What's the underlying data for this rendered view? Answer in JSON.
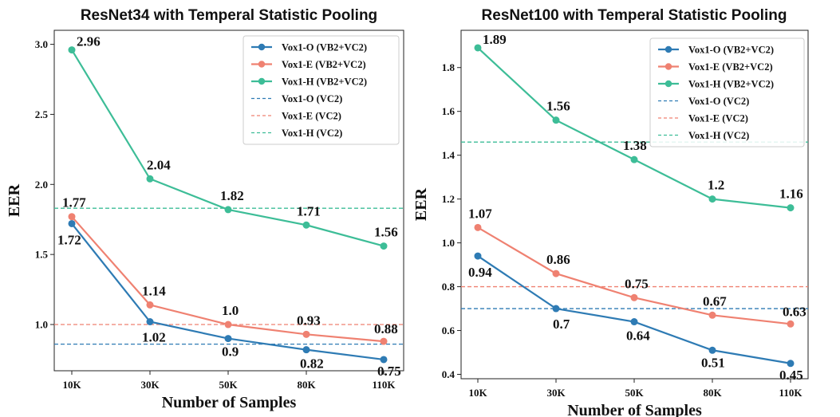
{
  "chart_data": [
    {
      "type": "line",
      "title": "ResNet34 with Temperal Statistic Pooling",
      "xlabel": "Number of Samples",
      "ylabel": "EER",
      "categories": [
        "10K",
        "30K",
        "50K",
        "80K",
        "110K"
      ],
      "ylim": [
        0.67,
        3.1
      ],
      "yticks": [
        "1.0",
        "1.5",
        "2.0",
        "2.5",
        "3.0"
      ],
      "legend_position": "top-right",
      "series": [
        {
          "name": "Vox1-O (VB2+VC2)",
          "color": "#2e7bb4",
          "values": [
            1.72,
            1.02,
            0.9,
            0.82,
            0.75
          ],
          "labels": [
            "1.72",
            "1.02",
            "0.9",
            "0.82",
            "0.75"
          ]
        },
        {
          "name": "Vox1-E (VB2+VC2)",
          "color": "#ef8171",
          "values": [
            1.77,
            1.14,
            1.0,
            0.93,
            0.88
          ],
          "labels": [
            "1.77",
            "1.14",
            "1.0",
            "0.93",
            "0.88"
          ]
        },
        {
          "name": "Vox1-H (VB2+VC2)",
          "color": "#3dbd97",
          "values": [
            2.96,
            2.04,
            1.82,
            1.71,
            1.56
          ],
          "labels": [
            "2.96",
            "2.04",
            "1.82",
            "1.71",
            "1.56"
          ]
        }
      ],
      "baselines": [
        {
          "name": "Vox1-O (VC2)",
          "color": "#2e7bb4",
          "value": 0.86
        },
        {
          "name": "Vox1-E (VC2)",
          "color": "#ef8171",
          "value": 1.0
        },
        {
          "name": "Vox1-H (VC2)",
          "color": "#3dbd97",
          "value": 1.83
        }
      ]
    },
    {
      "type": "line",
      "title": "ResNet100 with Temperal Statistic Pooling",
      "xlabel": "Number of Samples",
      "ylabel": "EER",
      "categories": [
        "10K",
        "30K",
        "50K",
        "80K",
        "110K"
      ],
      "ylim": [
        0.38,
        1.97
      ],
      "yticks": [
        "0.4",
        "0.6",
        "0.8",
        "1.0",
        "1.2",
        "1.4",
        "1.6",
        "1.8"
      ],
      "legend_position": "top-right",
      "series": [
        {
          "name": "Vox1-O (VB2+VC2)",
          "color": "#2e7bb4",
          "values": [
            0.94,
            0.7,
            0.64,
            0.51,
            0.45
          ],
          "labels": [
            "0.94",
            "0.7",
            "0.64",
            "0.51",
            "0.45"
          ]
        },
        {
          "name": "Vox1-E (VB2+VC2)",
          "color": "#ef8171",
          "values": [
            1.07,
            0.86,
            0.75,
            0.67,
            0.63
          ],
          "labels": [
            "1.07",
            "0.86",
            "0.75",
            "0.67",
            "0.63"
          ]
        },
        {
          "name": "Vox1-H (VB2+VC2)",
          "color": "#3dbd97",
          "values": [
            1.89,
            1.56,
            1.38,
            1.2,
            1.16
          ],
          "labels": [
            "1.89",
            "1.56",
            "1.38",
            "1.2",
            "1.16"
          ]
        }
      ],
      "baselines": [
        {
          "name": "Vox1-O (VC2)",
          "color": "#2e7bb4",
          "value": 0.7
        },
        {
          "name": "Vox1-E (VC2)",
          "color": "#ef8171",
          "value": 0.8
        },
        {
          "name": "Vox1-H (VC2)",
          "color": "#3dbd97",
          "value": 1.46
        }
      ]
    }
  ]
}
